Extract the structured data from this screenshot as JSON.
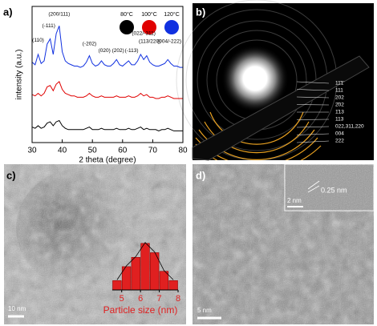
{
  "chart_data": [
    {
      "type": "line",
      "panel_label": "a)",
      "xlabel": "2 theta (degree)",
      "ylabel": "intensity (a.u.)",
      "x": [
        30,
        31,
        32,
        33,
        34,
        35,
        36,
        37,
        38,
        39,
        40,
        41,
        42,
        43,
        44,
        45,
        46,
        47,
        48,
        49,
        50,
        51,
        52,
        53,
        54,
        55,
        56,
        57,
        58,
        59,
        60,
        61,
        62,
        63,
        64,
        65,
        66,
        67,
        68,
        69,
        70,
        71,
        72,
        73,
        74,
        75,
        76,
        77,
        78,
        79,
        80
      ],
      "xlim": [
        30,
        80
      ],
      "xticks": [
        30,
        40,
        50,
        60,
        70,
        80
      ],
      "ylim": [
        0,
        10.5
      ],
      "series": [
        {
          "name": "80°C",
          "color": "#000000",
          "values": [
            1.2,
            1.1,
            1.3,
            1.1,
            1.2,
            1.5,
            1.6,
            1.3,
            1.6,
            1.7,
            1.3,
            1.1,
            1.0,
            1.0,
            1.0,
            1.0,
            1.0,
            1.0,
            1.1,
            1.2,
            1.0,
            1.0,
            1.0,
            1.1,
            1.0,
            1.0,
            1.0,
            1.0,
            1.1,
            1.0,
            1.0,
            1.0,
            1.1,
            1.0,
            1.0,
            1.1,
            1.2,
            1.0,
            1.1,
            1.0,
            1.0,
            1.0,
            0.9,
            1.0,
            1.0,
            1.1,
            1.0,
            0.9,
            0.9,
            0.9,
            0.9
          ]
        },
        {
          "name": "100°C",
          "color": "#e00000",
          "values": [
            3.7,
            3.6,
            3.8,
            3.6,
            3.8,
            4.3,
            4.4,
            4.0,
            4.5,
            4.7,
            4.1,
            3.8,
            3.7,
            3.6,
            3.6,
            3.5,
            3.5,
            3.5,
            3.6,
            3.8,
            3.6,
            3.5,
            3.5,
            3.6,
            3.5,
            3.5,
            3.5,
            3.5,
            3.6,
            3.5,
            3.5,
            3.5,
            3.6,
            3.5,
            3.5,
            3.6,
            3.8,
            3.6,
            3.7,
            3.5,
            3.5,
            3.4,
            3.4,
            3.5,
            3.5,
            3.6,
            3.5,
            3.4,
            3.4,
            3.4,
            3.4
          ]
        },
        {
          "name": "120°C",
          "color": "#1030e0",
          "values": [
            6.2,
            6.0,
            6.8,
            6.1,
            6.3,
            7.6,
            8.0,
            6.8,
            8.4,
            9.0,
            7.0,
            6.3,
            6.1,
            6.0,
            5.9,
            5.9,
            5.8,
            5.9,
            6.2,
            6.7,
            6.1,
            5.9,
            6.0,
            6.3,
            6.0,
            5.9,
            5.9,
            6.1,
            6.4,
            6.0,
            5.9,
            6.1,
            6.3,
            6.0,
            6.0,
            6.3,
            6.8,
            6.4,
            6.7,
            6.2,
            6.0,
            5.9,
            5.9,
            6.0,
            6.1,
            6.4,
            6.1,
            5.9,
            5.9,
            5.8,
            5.8
          ]
        }
      ],
      "annotations": [
        {
          "text": "(110)",
          "x": 32,
          "y": 7.9
        },
        {
          "text": "(-111)",
          "x": 35.5,
          "y": 9.0
        },
        {
          "text": "(200/111)",
          "x": 39,
          "y": 9.9
        },
        {
          "text": "(-202)",
          "x": 49,
          "y": 7.6
        },
        {
          "text": "(020)",
          "x": 54,
          "y": 7.1
        },
        {
          "text": "(202)",
          "x": 58.5,
          "y": 7.1
        },
        {
          "text": "(-113)",
          "x": 63,
          "y": 7.1
        },
        {
          "text": "(022/-311)",
          "x": 67,
          "y": 8.4
        },
        {
          "text": "(113/220)",
          "x": 69,
          "y": 7.8
        },
        {
          "text": "(004/-222)",
          "x": 75.5,
          "y": 7.8
        }
      ]
    },
    {
      "type": "histogram",
      "xlabel": "Particle size (nm)",
      "color": "#e02020",
      "bins": [
        4.5,
        5,
        5.5,
        6,
        6.5,
        7,
        7.5,
        8
      ],
      "values": [
        2,
        5,
        7,
        10,
        8,
        4,
        2
      ],
      "xlim": [
        4.5,
        8
      ],
      "xticks": [
        5,
        6,
        7,
        8
      ],
      "ylim": [
        0,
        11
      ]
    }
  ],
  "images": {
    "b": {
      "panel_label": "b)",
      "rings": [
        "11̄1̄",
        "111",
        "202",
        "2̄02",
        "1̄13",
        "113",
        "022,311,220",
        "004",
        "222"
      ]
    },
    "c": {
      "panel_label": "c)",
      "scale": "10 nm"
    },
    "d": {
      "panel_label": "d)",
      "scale": "5 nm",
      "inset_scale": "2 nm",
      "spacing": "0.25 nm"
    }
  }
}
